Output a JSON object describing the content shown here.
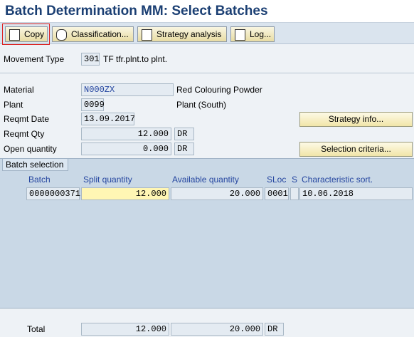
{
  "header": {
    "title": "Batch Determination MM: Select Batches"
  },
  "toolbar": {
    "buttons": [
      "Copy",
      "Classification...",
      "Strategy analysis",
      "Log..."
    ]
  },
  "movement": {
    "label": "Movement Type",
    "code": "301",
    "text": "TF tfr.plnt.to plnt."
  },
  "fields": {
    "material": {
      "label": "Material",
      "value": "N000ZX",
      "text": "Red Colouring Powder"
    },
    "plant": {
      "label": "Plant",
      "value": "0099",
      "text": "Plant (South)"
    },
    "reqmt_date": {
      "label": "Reqmt Date",
      "value": "13.09.2017"
    },
    "reqmt_qty": {
      "label": "Reqmt Qty",
      "value": "12.000",
      "unit": "DR"
    },
    "open_qty": {
      "label": "Open quantity",
      "value": "0.000",
      "unit": "DR"
    }
  },
  "side_buttons": [
    "Strategy info...",
    "Selection criteria..."
  ],
  "batch_selection": {
    "tab": "Batch selection",
    "columns": [
      "Batch",
      "Split quantity",
      "Available quantity",
      "SLoc",
      "S",
      "Characteristic sort."
    ],
    "rows": [
      {
        "batch": "0000000371",
        "split": "12.000",
        "available": "20.000",
        "sloc": "0001",
        "sort": "10.06.2018"
      }
    ]
  },
  "total": {
    "label": "Total",
    "split": "12.000",
    "available": "20.000",
    "unit": "DR"
  }
}
